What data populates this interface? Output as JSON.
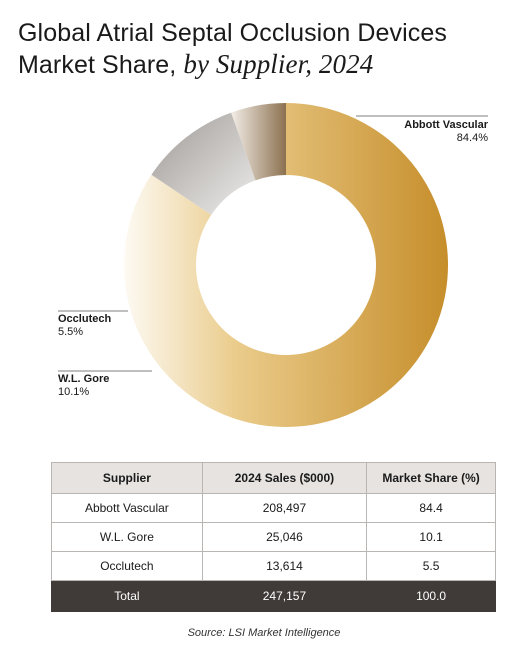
{
  "title_line1": "Global Atrial Septal Occlusion Devices",
  "title_line2_regular": "Market Share,",
  "title_line2_italic": "by Supplier, 2024",
  "chart_data": {
    "type": "pie",
    "title": "Global Atrial Septal Occlusion Devices Market Share, by Supplier, 2024",
    "categories": [
      "Abbott Vascular",
      "W.L. Gore",
      "Occlutech"
    ],
    "values": [
      84.4,
      10.1,
      5.5
    ],
    "labels": [
      "84.4%",
      "10.1%",
      "5.5%"
    ],
    "colors": [
      "#c8912f",
      "#a9a4a1",
      "#8f7552"
    ]
  },
  "table": {
    "headers": [
      "Supplier",
      "2024 Sales ($000)",
      "Market Share (%)"
    ],
    "rows": [
      [
        "Abbott Vascular",
        "208,497",
        "84.4"
      ],
      [
        "W.L. Gore",
        "25,046",
        "10.1"
      ],
      [
        "Occlutech",
        "13,614",
        "5.5"
      ]
    ],
    "total": [
      "Total",
      "247,157",
      "100.0"
    ]
  },
  "source": "Source: LSI Market Intelligence"
}
